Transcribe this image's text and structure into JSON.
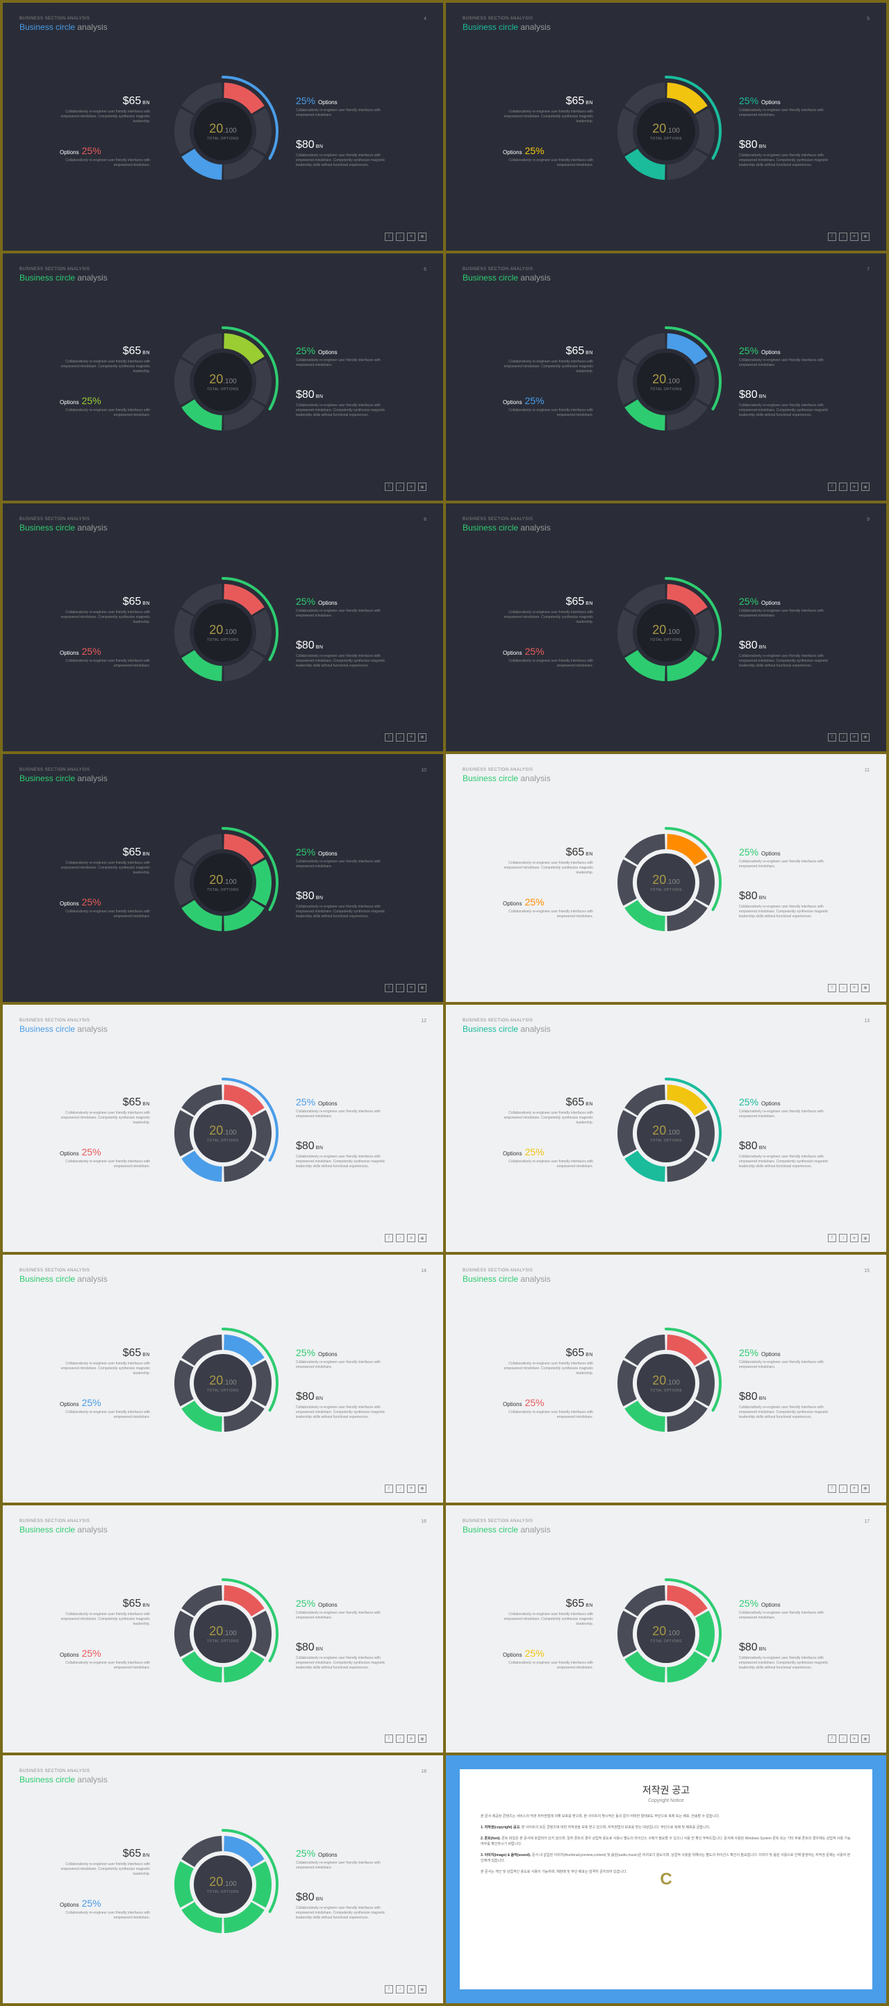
{
  "common": {
    "subtitle": "BUSINESS SECTION ANALYSIS",
    "title_word": "Business circle",
    "title_rest": " analysis",
    "stat1": {
      "val": "$65",
      "unit": "BN"
    },
    "stat2": {
      "pct": "25%",
      "label": "Options"
    },
    "stat3": {
      "pct": "25%",
      "label": "Options"
    },
    "stat4": {
      "val": "$80",
      "unit": "BN"
    },
    "desc1": "Collaboratively re-engineer user friendly interfaces with empowered mindshare. Competently synthesize magnetic leadership.",
    "desc2": "Collaboratively re-engineer user friendly interfaces with empowered mindshare.",
    "desc3": "Collaboratively re-engineer user friendly interfaces with empowered mindshare.",
    "desc4": "Collaboratively re-engineer user friendly interfaces with empowered mindshare. Competently synthesize magnetic leadership skills without functional experiences.",
    "center_main": "20",
    "center_sub": "100",
    "center_label": "TOTAL OPTIONS",
    "icons": [
      "f",
      "♪",
      "✈",
      "◉"
    ]
  },
  "segColors": {
    "darkSeg": "#3a3d48",
    "lightSeg": "#4a4d58"
  },
  "slides": [
    {
      "theme": "dark",
      "page": "4",
      "title_color": "#4a9de8",
      "opt_color": "#e85a5a",
      "arc_color": "#4a9de8",
      "seg_colors": [
        "#e85a5a",
        "#3a3d48",
        "#3a3d48",
        "#4a9de8",
        "#3a3d48",
        "#3a3d48"
      ]
    },
    {
      "theme": "dark",
      "page": "5",
      "title_color": "#1abc9c",
      "opt_color": "#f1c40f",
      "arc_color": "#1abc9c",
      "seg_colors": [
        "#f1c40f",
        "#3a3d48",
        "#3a3d48",
        "#1abc9c",
        "#3a3d48",
        "#3a3d48"
      ]
    },
    {
      "theme": "dark",
      "page": "6",
      "title_color": "#2ecc71",
      "opt_color": "#9acd32",
      "arc_color": "#2ecc71",
      "seg_colors": [
        "#9acd32",
        "#3a3d48",
        "#3a3d48",
        "#2ecc71",
        "#3a3d48",
        "#3a3d48"
      ]
    },
    {
      "theme": "dark",
      "page": "7",
      "title_color": "#2ecc71",
      "opt_color": "#4a9de8",
      "arc_color": "#2ecc71",
      "seg_colors": [
        "#4a9de8",
        "#3a3d48",
        "#3a3d48",
        "#2ecc71",
        "#3a3d48",
        "#3a3d48"
      ]
    },
    {
      "theme": "dark",
      "page": "8",
      "title_color": "#2ecc71",
      "opt_color": "#e85a5a",
      "arc_color": "#2ecc71",
      "seg_colors": [
        "#e85a5a",
        "#3a3d48",
        "#3a3d48",
        "#2ecc71",
        "#3a3d48",
        "#3a3d48"
      ]
    },
    {
      "theme": "dark",
      "page": "9",
      "title_color": "#2ecc71",
      "opt_color": "#e85a5a",
      "arc_color": "#2ecc71",
      "seg_colors": [
        "#e85a5a",
        "#3a3d48",
        "#2ecc71",
        "#2ecc71",
        "#3a3d48",
        "#3a3d48"
      ]
    },
    {
      "theme": "dark",
      "page": "10",
      "title_color": "#2ecc71",
      "opt_color": "#e85a5a",
      "arc_color": "#2ecc71",
      "seg_colors": [
        "#e85a5a",
        "#2ecc71",
        "#2ecc71",
        "#2ecc71",
        "#3a3d48",
        "#3a3d48"
      ]
    },
    {
      "theme": "light",
      "page": "11",
      "title_color": "#2ecc71",
      "opt_color": "#ff8c00",
      "arc_color": "#2ecc71",
      "seg_colors": [
        "#ff8c00",
        "#4a4d58",
        "#4a4d58",
        "#2ecc71",
        "#4a4d58",
        "#4a4d58"
      ]
    },
    {
      "theme": "light",
      "page": "12",
      "title_color": "#4a9de8",
      "opt_color": "#e85a5a",
      "arc_color": "#4a9de8",
      "seg_colors": [
        "#e85a5a",
        "#4a4d58",
        "#4a4d58",
        "#4a9de8",
        "#4a4d58",
        "#4a4d58"
      ]
    },
    {
      "theme": "light",
      "page": "13",
      "title_color": "#1abc9c",
      "opt_color": "#f1c40f",
      "arc_color": "#1abc9c",
      "seg_colors": [
        "#f1c40f",
        "#4a4d58",
        "#4a4d58",
        "#1abc9c",
        "#4a4d58",
        "#4a4d58"
      ]
    },
    {
      "theme": "light",
      "page": "14",
      "title_color": "#2ecc71",
      "opt_color": "#4a9de8",
      "arc_color": "#2ecc71",
      "seg_colors": [
        "#4a9de8",
        "#4a4d58",
        "#4a4d58",
        "#2ecc71",
        "#4a4d58",
        "#4a4d58"
      ]
    },
    {
      "theme": "light",
      "page": "15",
      "title_color": "#2ecc71",
      "opt_color": "#e85a5a",
      "arc_color": "#2ecc71",
      "seg_colors": [
        "#e85a5a",
        "#4a4d58",
        "#4a4d58",
        "#2ecc71",
        "#4a4d58",
        "#4a4d58"
      ]
    },
    {
      "theme": "light",
      "page": "16",
      "title_color": "#2ecc71",
      "opt_color": "#e85a5a",
      "arc_color": "#2ecc71",
      "seg_colors": [
        "#e85a5a",
        "#4a4d58",
        "#2ecc71",
        "#2ecc71",
        "#4a4d58",
        "#4a4d58"
      ]
    },
    {
      "theme": "light",
      "page": "17",
      "title_color": "#2ecc71",
      "opt_color": "#f1c40f",
      "arc_color": "#2ecc71",
      "seg_colors": [
        "#e85a5a",
        "#2ecc71",
        "#2ecc71",
        "#2ecc71",
        "#4a4d58",
        "#4a4d58"
      ]
    },
    {
      "theme": "light",
      "page": "18",
      "title_color": "#2ecc71",
      "opt_color": "#4a9de8",
      "arc_color": "#2ecc71",
      "seg_colors": [
        "#4a9de8",
        "#2ecc71",
        "#2ecc71",
        "#2ecc71",
        "#2ecc71",
        "#4a4d58"
      ]
    }
  ],
  "copyright": {
    "title": "저작권 공고",
    "subtitle": "Copyright Notice",
    "p1": "본 문서 제공된 콘텐츠는 서비스의 약관 저작권법에 의해 보호를 받으며, 본 사이트의 명시적인 동의 없이 어떠한 형태로도 무단으로 복제 또는 배포, 전송할 수 없습니다.",
    "p2_label": "1. 저작권(copyright) 공고.",
    "p2": "본 사이트의 모든 콘텐츠에 대한 저작권을 보호 받고 있으며, 저작권법의 보호를 받는 대상입니다. 무단으로 복제 및 배포를 금합니다.",
    "p3_label": "2. 폰트(font).",
    "p3": "폰트 파일은 본 문서에 포함되어 있지 않으며, 일부 폰트의 경우 상업적 용도로 사용시 별도의 라이선스 구매가 필요할 수 있으니 사용 전 확인 부탁드립니다. 문서에 사용된 Windows System 폰트 또는 기타 무료 폰트의 경우에도 상업적 사용 가능 여부를 확인하시기 바랍니다.",
    "p4_label": "3. 이미지(image) & 음악(sound).",
    "p4": "문서 내 삽입된 이미지(thumbnail,preview,content) 및 음원(audio,music)은 미리보기 용도이며, 상업적 사용을 위해서는 별도의 라이선스 확인이 필요합니다. 이미지 및 음원 사용으로 인해 발생하는 저작권 문제는 사용자 본인에게 있습니다.",
    "p5": "본 문서는 개인 및 상업적인 용도로 사용이 가능하며, 재판매 및 무단 배포는 엄격히 금지되어 있습니다."
  }
}
